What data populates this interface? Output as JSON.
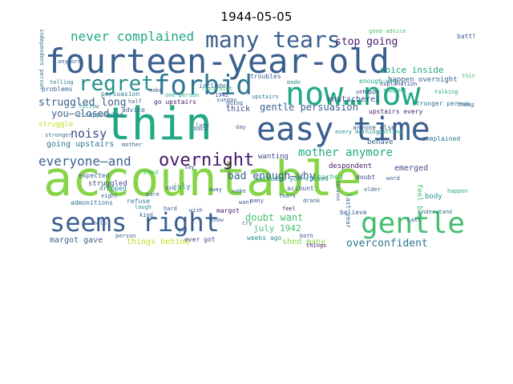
{
  "title": "1944-05-05",
  "palette": {
    "dark_purple": "#46196b",
    "blue_purple": "#3f4a8a",
    "slate_blue": "#3a5f8f",
    "steel_blue": "#2f7691",
    "teal": "#24908c",
    "green_teal": "#22a884",
    "green": "#45be70",
    "light_green": "#86d549",
    "yellow_green": "#c2df23",
    "yellow": "#ecdd19"
  },
  "words": [
    {
      "text": "fourteen-year-old",
      "color": "slate_blue",
      "rotate": false
    },
    {
      "text": "accountable",
      "color": "light_green",
      "rotate": false
    },
    {
      "text": "thin",
      "color": "green_teal",
      "rotate": false
    },
    {
      "text": "easy time",
      "color": "slate_blue",
      "rotate": false
    },
    {
      "text": "now…now",
      "color": "green_teal",
      "rotate": false
    },
    {
      "text": "forbid",
      "color": "steel_blue",
      "rotate": false
    },
    {
      "text": "seems right",
      "color": "slate_blue",
      "rotate": false
    },
    {
      "text": "gentle",
      "color": "green",
      "rotate": false
    },
    {
      "text": "many tears",
      "color": "slate_blue",
      "rotate": false
    },
    {
      "text": "regret",
      "color": "teal",
      "rotate": false
    },
    {
      "text": "overnight",
      "color": "dark_purple",
      "rotate": false
    },
    {
      "text": "everyone—and",
      "color": "slate_blue",
      "rotate": false
    },
    {
      "text": "mother anymore",
      "color": "green_teal",
      "rotate": false
    },
    {
      "text": "never complained",
      "color": "green_teal",
      "rotate": false
    },
    {
      "text": "stop going",
      "color": "dark_purple",
      "rotate": false
    },
    {
      "text": "noisy",
      "color": "blue_purple",
      "rotate": false
    },
    {
      "text": "bad enough—why",
      "color": "slate_blue",
      "rotate": false
    },
    {
      "text": "overconfident",
      "color": "steel_blue",
      "rotate": false
    },
    {
      "text": "struggled long",
      "color": "slate_blue",
      "rotate": false
    },
    {
      "text": "gentle persuasion",
      "color": "slate_blue",
      "rotate": false
    },
    {
      "text": "knutscherei",
      "color": "blue_purple",
      "rotate": false
    },
    {
      "text": "voice inside",
      "color": "green_teal",
      "rotate": false
    },
    {
      "text": "happen overnight",
      "color": "slate_blue",
      "rotate": false
    },
    {
      "text": "you—closed",
      "color": "slate_blue",
      "rotate": false
    },
    {
      "text": "doubt want",
      "color": "green",
      "rotate": false
    },
    {
      "text": "july 1942",
      "color": "green",
      "rotate": false
    },
    {
      "text": "shed many",
      "color": "light_green",
      "rotate": false
    },
    {
      "text": "things behind",
      "color": "yellow_green",
      "rotate": false
    },
    {
      "text": "margot gave",
      "color": "slate_blue",
      "rotate": false
    },
    {
      "text": "going upstairs",
      "color": "steel_blue",
      "rotate": false
    },
    {
      "text": "feel bad",
      "color": "green",
      "rotate": true
    },
    {
      "text": "emerged",
      "color": "blue_purple",
      "rotate": false
    },
    {
      "text": "struggled",
      "color": "blue_purple",
      "rotate": false
    },
    {
      "text": "upstairs every",
      "color": "dark_purple",
      "rotate": false
    },
    {
      "text": "despondent",
      "color": "dark_purple",
      "rotate": false
    },
    {
      "text": "wanting",
      "color": "blue_purple",
      "rotate": false
    },
    {
      "text": "thick",
      "color": "blue_purple",
      "rotate": false
    },
    {
      "text": "reached",
      "color": "green",
      "rotate": false
    },
    {
      "text": "includes you—closed",
      "color": "teal",
      "rotate": false
    },
    {
      "text": "stronger person",
      "color": "steel_blue",
      "rotate": false
    },
    {
      "text": "disappointed",
      "color": "steel_blue",
      "rotate": false
    },
    {
      "text": "persuasion",
      "color": "steel_blue",
      "rotate": false
    },
    {
      "text": "refuse",
      "color": "steel_blue",
      "rotate": false
    },
    {
      "text": "admonitions",
      "color": "steel_blue",
      "rotate": false
    },
    {
      "text": "july",
      "color": "teal",
      "rotate": false
    },
    {
      "text": "behave",
      "color": "slate_blue",
      "rotate": false
    },
    {
      "text": "complained",
      "color": "steel_blue",
      "rotate": false
    },
    {
      "text": "enough—why",
      "color": "green_teal",
      "rotate": false
    },
    {
      "text": "independent person",
      "color": "steel_blue",
      "rotate": true
    },
    {
      "text": "good advice",
      "color": "green",
      "rotate": false
    },
    {
      "text": "unhappy",
      "color": "blue_purple",
      "rotate": false
    },
    {
      "text": "troubles",
      "color": "slate_blue",
      "rotate": false
    },
    {
      "text": "support",
      "color": "green_teal",
      "rotate": false
    },
    {
      "text": "explanation",
      "color": "blue_purple",
      "rotate": false
    },
    {
      "text": "problems",
      "color": "slate_blue",
      "rotate": false
    },
    {
      "text": "advice",
      "color": "slate_blue",
      "rotate": false
    },
    {
      "text": "follow",
      "color": "teal",
      "rotate": false
    },
    {
      "text": "struggle",
      "color": "yellow_green",
      "rotate": false
    },
    {
      "text": "expected",
      "color": "slate_blue",
      "rotate": false
    },
    {
      "text": "dropped",
      "color": "teal",
      "rotate": false
    },
    {
      "text": "shed",
      "color": "green",
      "rotate": false
    },
    {
      "text": "upstairs",
      "color": "steel_blue",
      "rotate": false
    },
    {
      "text": "go upstairs",
      "color": "dark_purple",
      "rotate": false
    },
    {
      "text": "account",
      "color": "slate_blue",
      "rotate": false
    },
    {
      "text": "last year",
      "color": "steel_blue",
      "rotate": true
    },
    {
      "text": "doubt",
      "color": "blue_purple",
      "rotate": false
    },
    {
      "text": "body",
      "color": "teal",
      "rotate": false
    },
    {
      "text": "believe",
      "color": "slate_blue",
      "rotate": false
    },
    {
      "text": "ever got",
      "color": "blue_purple",
      "rotate": false
    },
    {
      "text": "weeks ago",
      "color": "teal",
      "rotate": false
    },
    {
      "text": "anyone else",
      "color": "slate_blue",
      "rotate": false
    },
    {
      "text": "battle",
      "color": "slate_blue",
      "rotate": false
    },
    {
      "text": "includes",
      "color": "slate_blue",
      "rotate": false
    },
    {
      "text": "stronger",
      "color": "steel_blue",
      "rotate": false
    },
    {
      "text": "putting",
      "color": "green_teal",
      "rotate": false
    },
    {
      "text": "one person",
      "color": "green_teal",
      "rotate": false
    },
    {
      "text": "restraint",
      "color": "green",
      "rotate": false
    },
    {
      "text": "1942",
      "color": "blue_purple",
      "rotate": false
    },
    {
      "text": "every morning",
      "color": "teal",
      "rotate": false
    },
    {
      "text": "sunday",
      "color": "slate_blue",
      "rotate": false
    },
    {
      "text": "understand",
      "color": "steel_blue",
      "rotate": false
    },
    {
      "text": "margot",
      "color": "dark_purple",
      "rotate": false
    },
    {
      "text": "happen",
      "color": "green_teal",
      "rotate": false
    },
    {
      "text": "mother",
      "color": "slate_blue",
      "rotate": false
    },
    {
      "text": "anymore",
      "color": "slate_blue",
      "rotate": false
    },
    {
      "text": "half",
      "color": "slate_blue",
      "rotate": false
    },
    {
      "text": "late",
      "color": "slate_blue",
      "rotate": false
    },
    {
      "text": "laugh",
      "color": "teal",
      "rotate": false
    },
    {
      "text": "kind",
      "color": "slate_blue",
      "rotate": false
    },
    {
      "text": "pure",
      "color": "slate_blue",
      "rotate": false
    },
    {
      "text": "back",
      "color": "slate_blue",
      "rotate": false
    },
    {
      "text": "thought",
      "color": "slate_blue",
      "rotate": false
    },
    {
      "text": "cry",
      "color": "slate_blue",
      "rotate": false
    },
    {
      "text": "help",
      "color": "slate_blue",
      "rotate": false
    },
    {
      "text": "feel",
      "color": "dark_purple",
      "rotate": false
    },
    {
      "text": "both",
      "color": "slate_blue",
      "rotate": false
    },
    {
      "text": "things",
      "color": "dark_purple",
      "rotate": false
    },
    {
      "text": "telling",
      "color": "steel_blue",
      "rotate": false
    },
    {
      "text": "talking",
      "color": "green_teal",
      "rotate": false
    },
    {
      "text": "made",
      "color": "teal",
      "rotate": false
    },
    {
      "text": "day",
      "color": "slate_blue",
      "rotate": false
    },
    {
      "text": "going",
      "color": "slate_blue",
      "rotate": false
    },
    {
      "text": "say",
      "color": "slate_blue",
      "rotate": false
    },
    {
      "text": "know",
      "color": "slate_blue",
      "rotate": false
    },
    {
      "text": "word",
      "color": "slate_blue",
      "rotate": false
    },
    {
      "text": "eight",
      "color": "slate_blue",
      "rotate": false
    },
    {
      "text": "hard",
      "color": "slate_blue",
      "rotate": false
    },
    {
      "text": "away",
      "color": "slate_blue",
      "rotate": false
    },
    {
      "text": "think",
      "color": "green",
      "rotate": false
    },
    {
      "text": "because",
      "color": "slate_blue",
      "rotate": true
    },
    {
      "text": "older",
      "color": "slate_blue",
      "rotate": false
    },
    {
      "text": "many",
      "color": "slate_blue",
      "rotate": false
    },
    {
      "text": "tears",
      "color": "slate_blue",
      "rotate": false
    },
    {
      "text": "wake",
      "color": "slate_blue",
      "rotate": false
    },
    {
      "text": "make",
      "color": "slate_blue",
      "rotate": false
    },
    {
      "text": "want",
      "color": "slate_blue",
      "rotate": false
    },
    {
      "text": "ask",
      "color": "slate_blue",
      "rotate": false
    },
    {
      "text": "last",
      "color": "slate_blue",
      "rotate": false
    },
    {
      "text": "person",
      "color": "slate_blue",
      "rotate": false
    },
    {
      "text": "drank",
      "color": "slate_blue",
      "rotate": false
    },
    {
      "text": "wish",
      "color": "slate_blue",
      "rotate": false
    },
    {
      "text": "get",
      "color": "slate_blue",
      "rotate": false
    }
  ]
}
